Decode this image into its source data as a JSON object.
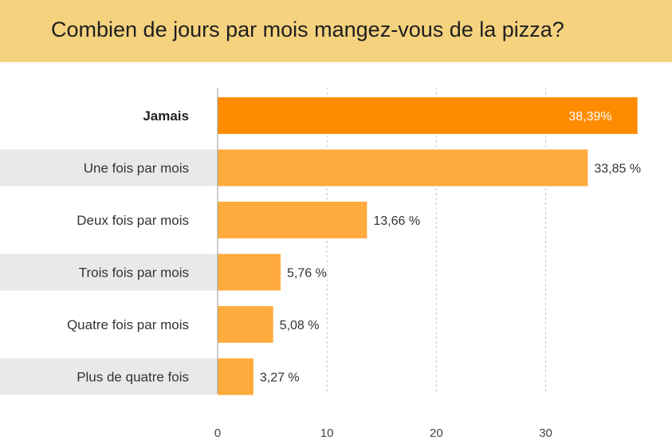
{
  "chart_data": {
    "type": "bar",
    "orientation": "horizontal",
    "title": "Combien de jours par mois mangez-vous de la pizza?",
    "categories": [
      "Jamais",
      "Une fois par mois",
      "Deux fois par mois",
      "Trois fois par mois",
      "Quatre fois par mois",
      "Plus de quatre fois"
    ],
    "values": [
      38.39,
      33.85,
      13.66,
      5.76,
      5.08,
      3.27
    ],
    "value_labels": [
      "38,39%",
      "33,85 %",
      "13,66 %",
      "5,76 %",
      "5,08 %",
      "3,27 %"
    ],
    "highlighted_index": 0,
    "x_ticks": [
      0,
      10,
      20,
      30
    ],
    "xlim": [
      0,
      39
    ],
    "grid": true,
    "colors": {
      "highlight": "#ff8c00",
      "bar": "#ffab3d",
      "header_bg": "#f4d27e",
      "row_stripe": "#e9e9e9",
      "grid": "#c8c8c8"
    }
  }
}
